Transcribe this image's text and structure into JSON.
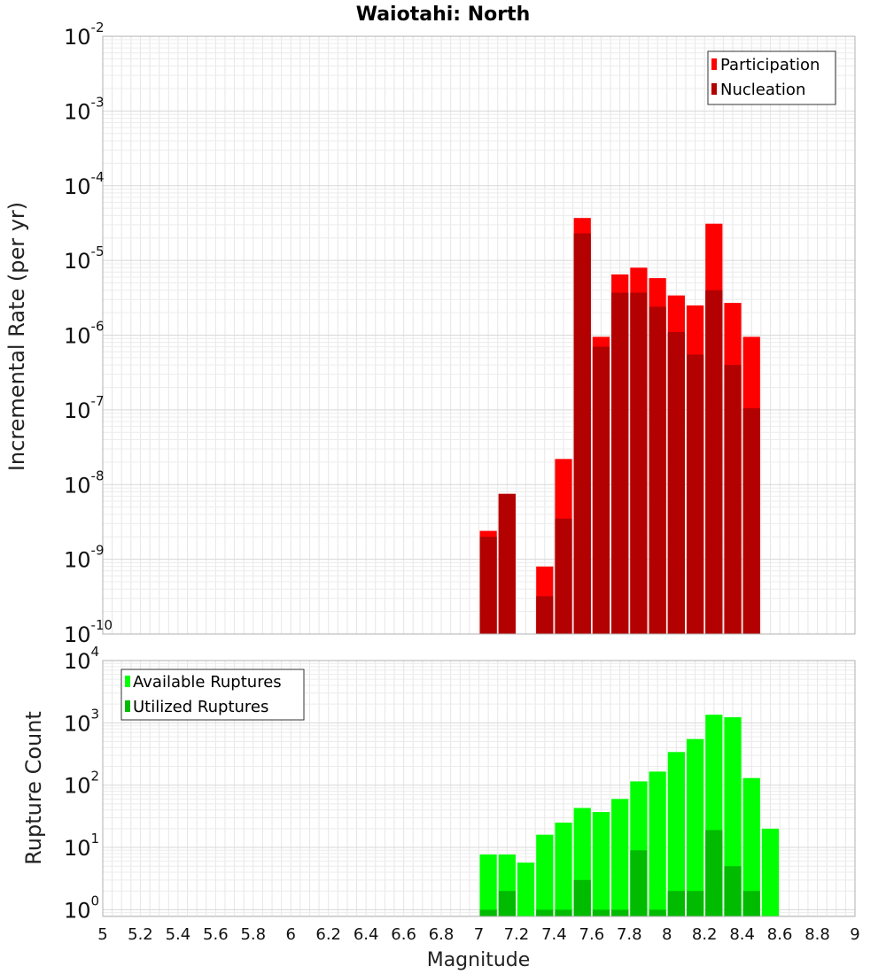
{
  "chart_data": [
    {
      "type": "bar",
      "title": "Waiotahi: North",
      "ylabel": "Incremental Rate (per yr)",
      "xlabel": "",
      "yscale": "log",
      "ylim": [
        1e-10,
        0.01
      ],
      "xlim": [
        5,
        9
      ],
      "bin_width": 0.1,
      "grid": true,
      "legend_position": "top-right",
      "x": [
        7.0,
        7.1,
        7.3,
        7.4,
        7.5,
        7.6,
        7.7,
        7.8,
        7.9,
        8.0,
        8.1,
        8.2,
        8.3,
        8.4
      ],
      "series": [
        {
          "name": "Participation",
          "color": "#ff0000",
          "values": [
            2.4e-09,
            7.5e-09,
            8e-10,
            2.2e-08,
            3.7e-05,
            9.5e-07,
            6.5e-06,
            8e-06,
            5.8e-06,
            3.4e-06,
            2.5e-06,
            3.1e-05,
            2.7e-06,
            9.5e-07
          ]
        },
        {
          "name": "Nucleation",
          "color": "#b30000",
          "values": [
            2e-09,
            7.5e-09,
            3.2e-10,
            3.5e-09,
            2.3e-05,
            7e-07,
            3.7e-06,
            3.7e-06,
            2.4e-06,
            1.1e-06,
            5.5e-07,
            4e-06,
            4e-07,
            1.05e-07
          ]
        }
      ]
    },
    {
      "type": "bar",
      "title": "",
      "ylabel": "Rupture Count",
      "xlabel": "Magnitude",
      "yscale": "log",
      "ylim": [
        0.78,
        10000
      ],
      "xlim": [
        5,
        9
      ],
      "bin_width": 0.1,
      "grid": true,
      "legend_position": "top-left",
      "x": [
        7.0,
        7.1,
        7.2,
        7.3,
        7.4,
        7.5,
        7.6,
        7.7,
        7.8,
        7.9,
        8.0,
        8.1,
        8.2,
        8.3,
        8.4,
        8.5
      ],
      "series": [
        {
          "name": "Available Ruptures",
          "color": "#00ff00",
          "values": [
            7.7,
            7.7,
            5.7,
            16,
            25,
            43,
            37,
            60,
            115,
            165,
            340,
            550,
            1350,
            1230,
            130,
            20
          ]
        },
        {
          "name": "Utilized Ruptures",
          "color": "#00bb00",
          "values": [
            1,
            2,
            0,
            1,
            1,
            3,
            1,
            1,
            9,
            1,
            2,
            2,
            19,
            5,
            2,
            0
          ]
        }
      ]
    }
  ],
  "x_ticks": [
    "5",
    "5.2",
    "5.4",
    "5.6",
    "5.8",
    "6",
    "6.2",
    "6.4",
    "6.6",
    "6.8",
    "7",
    "7.2",
    "7.4",
    "7.6",
    "7.8",
    "8",
    "8.2",
    "8.4",
    "8.6",
    "8.8",
    "9"
  ],
  "top_y_ticks": {
    "base": "10",
    "exponents": [
      "-10",
      "-9",
      "-8",
      "-7",
      "-6",
      "-5",
      "-4",
      "-3",
      "-2"
    ]
  },
  "bottom_y_ticks": {
    "base": "10",
    "exponents": [
      "0",
      "1",
      "2",
      "3",
      "4"
    ]
  }
}
